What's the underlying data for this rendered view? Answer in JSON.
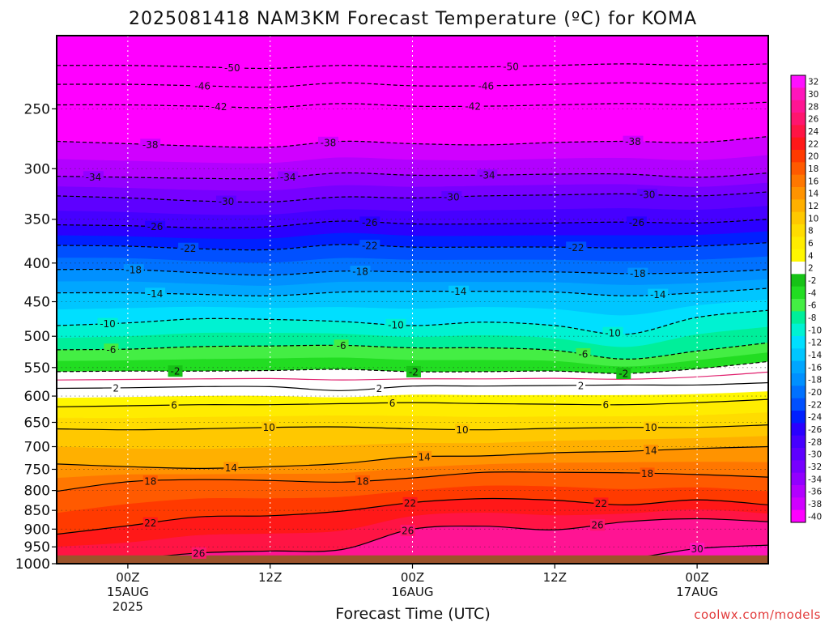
{
  "chart_data": {
    "type": "heatmap",
    "title": "2025081418 NAM3KM Forecast Temperature (ºC) for KOMA",
    "xlabel": "Forecast Time (UTC)",
    "ylabel": "",
    "credit": "coolwx.com/models",
    "x_unit": "hours since 2025-08-14 18Z",
    "xlim": [
      0,
      60
    ],
    "x_ticks": [
      {
        "x": 6,
        "lines": [
          "00Z",
          "15AUG",
          "2025"
        ]
      },
      {
        "x": 18,
        "lines": [
          "12Z"
        ]
      },
      {
        "x": 30,
        "lines": [
          "00Z",
          "16AUG"
        ]
      },
      {
        "x": 42,
        "lines": [
          "12Z"
        ]
      },
      {
        "x": 54,
        "lines": [
          "00Z",
          "17AUG"
        ]
      }
    ],
    "y_scale": "log-pressure (hPa), inverted",
    "ylim": [
      1000,
      200
    ],
    "y_ticks": [
      250,
      300,
      350,
      400,
      450,
      500,
      550,
      600,
      650,
      700,
      750,
      800,
      850,
      900,
      950,
      1000
    ],
    "ground_level_hPa": 975,
    "ground_color": "#9b532b",
    "colorbar": {
      "levels": [
        32,
        30,
        28,
        26,
        24,
        22,
        20,
        18,
        16,
        14,
        12,
        10,
        8,
        6,
        4,
        2,
        -2,
        -4,
        -6,
        -8,
        -10,
        -12,
        -14,
        -16,
        -18,
        -20,
        -22,
        -24,
        -26,
        -28,
        -30,
        -32,
        -34,
        -36,
        -38,
        -40
      ],
      "colors": [
        "#ff10ff",
        "#ff15bb",
        "#ff1493",
        "#ff146e",
        "#ff1444",
        "#ff1818",
        "#ff3a00",
        "#ff5a00",
        "#ff7700",
        "#ff9300",
        "#ffb000",
        "#ffc800",
        "#ffdc00",
        "#ffec00",
        "#fff700",
        "#ffffff",
        "#16c216",
        "#22dd22",
        "#44ee44",
        "#00ef9a",
        "#00f2d2",
        "#00dfff",
        "#00c6ff",
        "#00a6ff",
        "#0090ff",
        "#0071ff",
        "#0050ff",
        "#0020ff",
        "#2a00ff",
        "#4600ff",
        "#5e00ff",
        "#7700ff",
        "#9200ff",
        "#b200ff",
        "#d000ff",
        "#ff00ff"
      ]
    },
    "isotherms": [
      {
        "value": -50,
        "p": [
          219,
          219,
          220,
          221,
          219,
          220,
          220,
          219,
          218,
          219,
          218
        ]
      },
      {
        "value": -46,
        "p": [
          232,
          232,
          233,
          234,
          231,
          233,
          233,
          232,
          231,
          232,
          231
        ]
      },
      {
        "value": -42,
        "p": [
          247,
          247,
          248,
          249,
          246,
          248,
          248,
          247,
          246,
          247,
          245
        ]
      },
      {
        "value": -38,
        "p": [
          276,
          278,
          280,
          281,
          276,
          278,
          279,
          277,
          276,
          277,
          272
        ]
      },
      {
        "value": -34,
        "p": [
          307,
          308,
          309,
          309,
          304,
          306,
          306,
          305,
          305,
          308,
          304
        ]
      },
      {
        "value": -30,
        "p": [
          326,
          328,
          331,
          332,
          327,
          328,
          326,
          325,
          324,
          326,
          322
        ]
      },
      {
        "value": -26,
        "p": [
          356,
          357,
          359,
          358,
          352,
          355,
          355,
          354,
          353,
          354,
          350
        ]
      },
      {
        "value": -22,
        "p": [
          379,
          380,
          383,
          384,
          378,
          381,
          381,
          381,
          382,
          380,
          376
        ]
      },
      {
        "value": -18,
        "p": [
          408,
          408,
          412,
          415,
          410,
          411,
          411,
          411,
          413,
          412,
          408
        ]
      },
      {
        "value": -14,
        "p": [
          438,
          438,
          440,
          442,
          437,
          436,
          436,
          437,
          442,
          438,
          432
        ]
      },
      {
        "value": -10,
        "p": [
          484,
          480,
          474,
          475,
          478,
          484,
          479,
          484,
          497,
          472,
          462
        ]
      },
      {
        "value": -6,
        "p": [
          521,
          520,
          516,
          515,
          514,
          518,
          518,
          522,
          536,
          523,
          510
        ]
      },
      {
        "value": -2,
        "p": [
          557,
          556,
          556,
          555,
          553,
          557,
          557,
          556,
          560,
          552,
          540
        ]
      },
      {
        "value": 2,
        "p": [
          586,
          585,
          583,
          583,
          590,
          582,
          582,
          581,
          580,
          580,
          576
        ]
      },
      {
        "value": 6,
        "p": [
          620,
          618,
          616,
          616,
          614,
          612,
          614,
          615,
          616,
          612,
          606
        ]
      },
      {
        "value": 10,
        "p": [
          663,
          665,
          663,
          660,
          659,
          663,
          665,
          662,
          660,
          660,
          655
        ]
      },
      {
        "value": 14,
        "p": [
          738,
          744,
          748,
          744,
          737,
          722,
          720,
          713,
          710,
          704,
          700
        ]
      },
      {
        "value": 18,
        "p": [
          802,
          779,
          774,
          776,
          780,
          770,
          757,
          757,
          758,
          762,
          768
        ]
      },
      {
        "value": 22,
        "p": [
          914,
          891,
          867,
          864,
          852,
          830,
          820,
          824,
          836,
          823,
          836
        ]
      },
      {
        "value": 26,
        "p": [
          985,
          985,
          968,
          962,
          958,
          900,
          892,
          902,
          880,
          872,
          880
        ]
      },
      {
        "value": 30,
        "p": [
          985,
          985,
          985,
          985,
          985,
          985,
          985,
          985,
          985,
          955,
          945
        ]
      }
    ],
    "isotherm_labels": [
      {
        "value": -50,
        "x": 14.8
      },
      {
        "value": -50,
        "x": 38.3
      },
      {
        "value": -46,
        "x": 12.3
      },
      {
        "value": -46,
        "x": 36.2
      },
      {
        "value": -42,
        "x": 13.7
      },
      {
        "value": -42,
        "x": 35.1
      },
      {
        "value": -38,
        "x": 7.9
      },
      {
        "value": -38,
        "x": 22.9
      },
      {
        "value": -38,
        "x": 48.6
      },
      {
        "value": -34,
        "x": 3.1
      },
      {
        "value": -34,
        "x": 19.5
      },
      {
        "value": -34,
        "x": 36.3
      },
      {
        "value": -30,
        "x": 14.3
      },
      {
        "value": -30,
        "x": 33.3
      },
      {
        "value": -30,
        "x": 49.8
      },
      {
        "value": -26,
        "x": 8.3
      },
      {
        "value": -26,
        "x": 26.4
      },
      {
        "value": -26,
        "x": 48.9
      },
      {
        "value": -22,
        "x": 11.1
      },
      {
        "value": -22,
        "x": 26.4
      },
      {
        "value": -22,
        "x": 43.8
      },
      {
        "value": -18,
        "x": 6.5
      },
      {
        "value": -18,
        "x": 25.6
      },
      {
        "value": -18,
        "x": 49.0
      },
      {
        "value": -14,
        "x": 8.3
      },
      {
        "value": -14,
        "x": 33.9
      },
      {
        "value": -14,
        "x": 50.7
      },
      {
        "value": -10,
        "x": 4.3
      },
      {
        "value": -10,
        "x": 28.6
      },
      {
        "value": -10,
        "x": 46.9
      },
      {
        "value": -6,
        "x": 4.6
      },
      {
        "value": -6,
        "x": 24.0
      },
      {
        "value": -6,
        "x": 44.4
      },
      {
        "value": -2,
        "x": 10.0
      },
      {
        "value": -2,
        "x": 30.1
      },
      {
        "value": -2,
        "x": 47.8
      },
      {
        "value": 2,
        "x": 5.0
      },
      {
        "value": 2,
        "x": 27.2
      },
      {
        "value": 2,
        "x": 44.2
      },
      {
        "value": 6,
        "x": 9.9
      },
      {
        "value": 6,
        "x": 28.3
      },
      {
        "value": 6,
        "x": 46.3
      },
      {
        "value": 10,
        "x": 17.9
      },
      {
        "value": 10,
        "x": 34.2
      },
      {
        "value": 10,
        "x": 50.1
      },
      {
        "value": 14,
        "x": 14.7
      },
      {
        "value": 14,
        "x": 31.0
      },
      {
        "value": 14,
        "x": 50.1
      },
      {
        "value": 18,
        "x": 7.9
      },
      {
        "value": 18,
        "x": 25.8
      },
      {
        "value": 18,
        "x": 49.8
      },
      {
        "value": 22,
        "x": 7.9
      },
      {
        "value": 22,
        "x": 29.8
      },
      {
        "value": 22,
        "x": 45.9
      },
      {
        "value": 26,
        "x": 12.0
      },
      {
        "value": 26,
        "x": 29.6
      },
      {
        "value": 26,
        "x": 45.6
      },
      {
        "value": 30,
        "x": 54.0
      }
    ]
  }
}
